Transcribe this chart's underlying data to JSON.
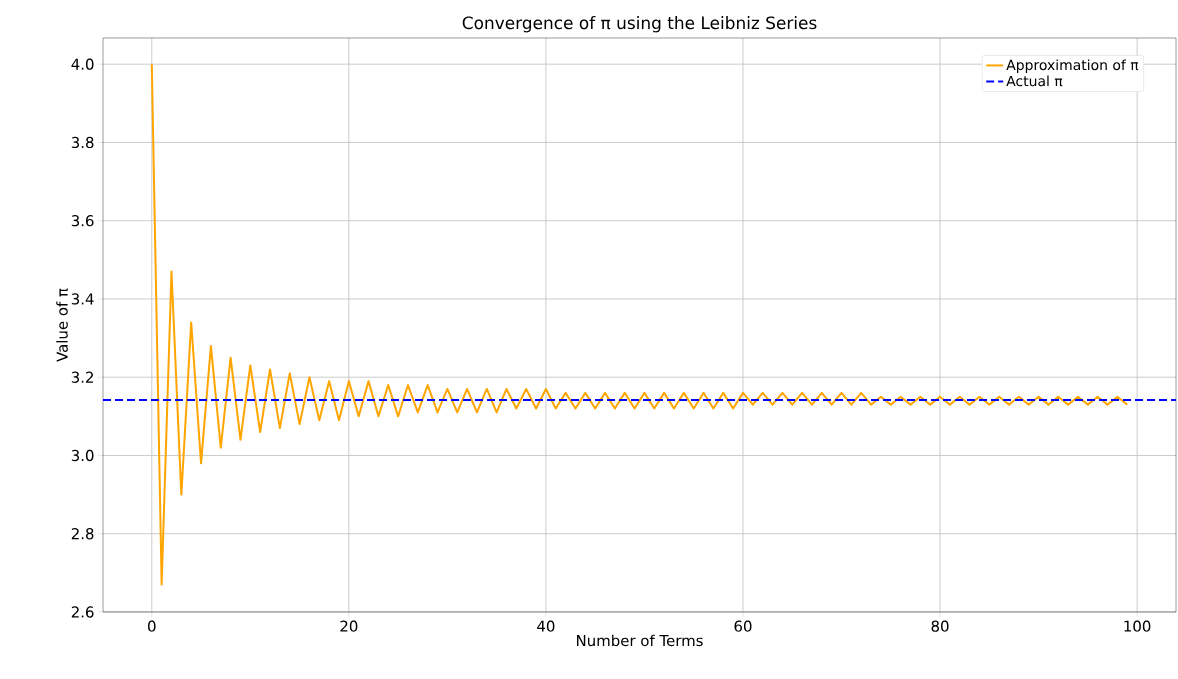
{
  "chart_data": {
    "type": "line",
    "title": "Convergence of π using the Leibniz Series",
    "xlabel": "Number of Terms",
    "ylabel": "Value of π",
    "x": [
      0,
      1,
      2,
      3,
      4,
      5,
      6,
      7,
      8,
      9,
      10,
      11,
      12,
      13,
      14,
      15,
      16,
      17,
      18,
      19,
      20,
      21,
      22,
      23,
      24,
      25,
      26,
      27,
      28,
      29,
      30,
      31,
      32,
      33,
      34,
      35,
      36,
      37,
      38,
      39,
      40,
      41,
      42,
      43,
      44,
      45,
      46,
      47,
      48,
      49,
      50,
      51,
      52,
      53,
      54,
      55,
      56,
      57,
      58,
      59,
      60,
      61,
      62,
      63,
      64,
      65,
      66,
      67,
      68,
      69,
      70,
      71,
      72,
      73,
      74,
      75,
      76,
      77,
      78,
      79,
      80,
      81,
      82,
      83,
      84,
      85,
      86,
      87,
      88,
      89,
      90,
      91,
      92,
      93,
      94,
      95,
      96,
      97,
      98,
      99
    ],
    "series": [
      {
        "name": "Approximation of π",
        "color": "#ffa500",
        "values": [
          4.0,
          2.67,
          3.47,
          2.9,
          3.34,
          2.98,
          3.28,
          3.02,
          3.25,
          3.04,
          3.23,
          3.06,
          3.22,
          3.07,
          3.21,
          3.08,
          3.2,
          3.09,
          3.19,
          3.09,
          3.19,
          3.1,
          3.19,
          3.1,
          3.18,
          3.1,
          3.18,
          3.11,
          3.18,
          3.11,
          3.17,
          3.11,
          3.17,
          3.11,
          3.17,
          3.11,
          3.17,
          3.12,
          3.17,
          3.12,
          3.17,
          3.12,
          3.16,
          3.12,
          3.16,
          3.12,
          3.16,
          3.12,
          3.16,
          3.12,
          3.16,
          3.12,
          3.16,
          3.12,
          3.16,
          3.12,
          3.16,
          3.12,
          3.16,
          3.12,
          3.16,
          3.13,
          3.16,
          3.13,
          3.16,
          3.13,
          3.16,
          3.13,
          3.16,
          3.13,
          3.16,
          3.13,
          3.16,
          3.13,
          3.15,
          3.13,
          3.15,
          3.13,
          3.15,
          3.13,
          3.15,
          3.13,
          3.15,
          3.13,
          3.15,
          3.13,
          3.15,
          3.13,
          3.15,
          3.13,
          3.15,
          3.13,
          3.15,
          3.13,
          3.15,
          3.13,
          3.15,
          3.13,
          3.15,
          3.13
        ]
      }
    ],
    "ref_lines": [
      {
        "axis": "y",
        "value": 3.1416,
        "label": "Actual π",
        "color": "#0000ff",
        "line_style": "dashed"
      }
    ],
    "xlim": [
      -4.95,
      103.95
    ],
    "xticks": [
      0,
      20,
      40,
      60,
      80,
      100
    ],
    "ylim": [
      2.6,
      4.067
    ],
    "yticks": [
      2.6,
      2.8,
      {
        "value": 3,
        "label": "3.0"
      },
      3.2,
      3.4,
      3.6,
      3.8,
      {
        "value": 4,
        "label": "4.0"
      }
    ],
    "grid": true,
    "legend": "top right"
  }
}
